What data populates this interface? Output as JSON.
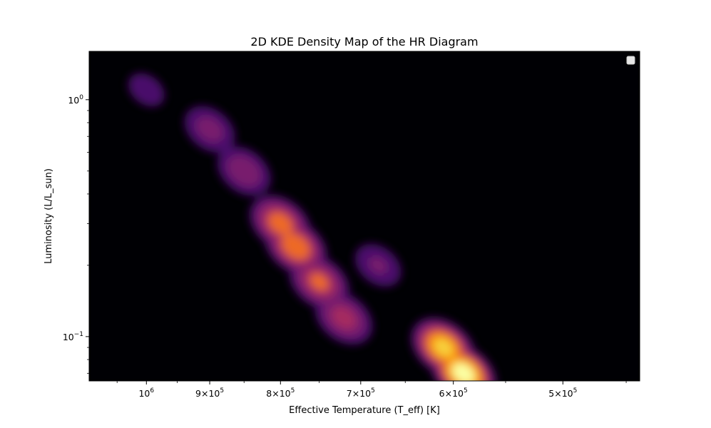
{
  "chart_data": {
    "type": "heatmap",
    "title": "2D KDE Density Map of the HR Diagram",
    "xlabel": "Effective Temperature (T_eff) [K]",
    "ylabel": "Luminosity (L/L_sun)",
    "x_scale": "log",
    "y_scale": "log",
    "x_inverted": true,
    "xlim": [
      1100000,
      440000
    ],
    "ylim": [
      0.065,
      1.6
    ],
    "x_ticks": [
      {
        "value": 1000000,
        "mantissa": "",
        "base": "10",
        "exp": "6"
      },
      {
        "value": 900000,
        "mantissa": "9",
        "base": "10",
        "exp": "5"
      },
      {
        "value": 800000,
        "mantissa": "8",
        "base": "10",
        "exp": "5"
      },
      {
        "value": 700000,
        "mantissa": "7",
        "base": "10",
        "exp": "5"
      },
      {
        "value": 600000,
        "mantissa": "6",
        "base": "10",
        "exp": "5"
      },
      {
        "value": 500000,
        "mantissa": "5",
        "base": "10",
        "exp": "5"
      }
    ],
    "y_ticks": [
      {
        "value": 1,
        "base": "10",
        "exp": "0"
      },
      {
        "value": 0.1,
        "base": "10",
        "exp": "−1"
      }
    ],
    "colormap": "inferno",
    "legend_placement": "upper right",
    "grid": false,
    "density_peaks": [
      {
        "teff": 1000000,
        "lum": 1.1,
        "density": 0.18
      },
      {
        "teff": 900000,
        "lum": 0.75,
        "density": 0.3
      },
      {
        "teff": 850000,
        "lum": 0.5,
        "density": 0.35
      },
      {
        "teff": 800000,
        "lum": 0.3,
        "density": 0.62
      },
      {
        "teff": 780000,
        "lum": 0.24,
        "density": 0.68
      },
      {
        "teff": 750000,
        "lum": 0.17,
        "density": 0.55
      },
      {
        "teff": 720000,
        "lum": 0.12,
        "density": 0.45
      },
      {
        "teff": 680000,
        "lum": 0.2,
        "density": 0.25
      },
      {
        "teff": 610000,
        "lum": 0.09,
        "density": 0.85
      },
      {
        "teff": 590000,
        "lum": 0.07,
        "density": 1.0
      }
    ]
  },
  "colors": {
    "background": "#000004",
    "figure": "#ffffff",
    "colormap_stops": [
      "#000004",
      "#1b0c41",
      "#4a0c6b",
      "#781c6d",
      "#a52c60",
      "#cf4446",
      "#ed6925",
      "#fb9b06",
      "#f7d13d",
      "#fcffa4"
    ]
  }
}
